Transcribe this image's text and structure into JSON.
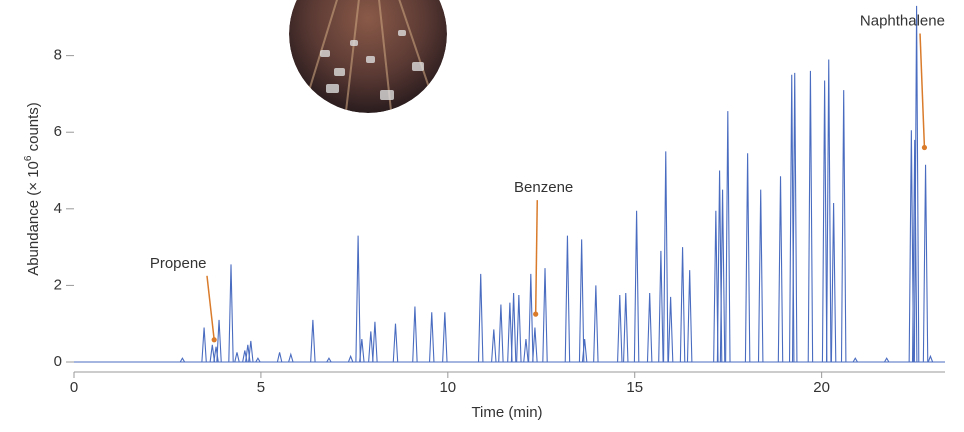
{
  "chart_data": {
    "type": "peaks",
    "xlabel": "Time (min)",
    "ylabel": {
      "pre": "Abundance (× 10",
      "sup": "6",
      "post": " counts)"
    },
    "xlim": [
      0,
      23.3
    ],
    "xticks": [
      0,
      5,
      10,
      15,
      20
    ],
    "ylim": [
      0,
      9.4
    ],
    "yticks": [
      0,
      2,
      4,
      6,
      8
    ],
    "series": [
      {
        "color": "#4a6cc0",
        "x": [
          2.9,
          3.48,
          3.7,
          3.8,
          3.88,
          4.2,
          4.36,
          4.57,
          4.65,
          4.73,
          4.92,
          5.5,
          5.8,
          6.39,
          6.82,
          7.4,
          7.6,
          7.7,
          7.94,
          8.05,
          8.6,
          9.12,
          9.57,
          9.92,
          10.88,
          11.23,
          11.42,
          11.66,
          11.76,
          11.9,
          12.09,
          12.22,
          12.33,
          12.6,
          13.2,
          13.58,
          13.66,
          13.96,
          14.6,
          14.76,
          15.05,
          15.4,
          15.7,
          15.83,
          15.96,
          16.28,
          16.47,
          17.17,
          17.27,
          17.35,
          17.49,
          18.02,
          18.37,
          18.9,
          19.2,
          19.28,
          19.7,
          20.08,
          20.19,
          20.32,
          20.59,
          20.9,
          21.74,
          22.4,
          22.49,
          22.54,
          22.78,
          22.91
        ],
        "values": [
          0.1,
          0.9,
          0.45,
          0.4,
          1.1,
          2.55,
          0.25,
          0.3,
          0.45,
          0.55,
          0.1,
          0.25,
          0.2,
          1.1,
          0.1,
          0.15,
          3.3,
          0.6,
          0.8,
          1.05,
          1.0,
          1.45,
          1.3,
          1.3,
          2.3,
          0.85,
          1.5,
          1.55,
          1.8,
          1.75,
          0.6,
          2.3,
          0.9,
          2.45,
          3.3,
          3.2,
          0.6,
          2.0,
          1.75,
          1.8,
          3.95,
          1.8,
          2.9,
          5.5,
          1.7,
          3.0,
          2.4,
          3.95,
          5.0,
          4.5,
          6.55,
          5.45,
          4.5,
          4.85,
          7.5,
          7.55,
          7.6,
          7.35,
          7.9,
          4.15,
          7.1,
          0.1,
          0.1,
          6.05,
          5.8,
          9.3,
          5.15,
          0.15
        ]
      }
    ],
    "annotations": [
      {
        "text": "Propene",
        "x": 3.75,
        "y": 0.58
      },
      {
        "text": "Benzene",
        "x": 12.35,
        "y": 1.25
      },
      {
        "text": "Naphthalene",
        "x": 22.75,
        "y": 5.6
      }
    ],
    "annotation_color": "#d97b2b"
  }
}
